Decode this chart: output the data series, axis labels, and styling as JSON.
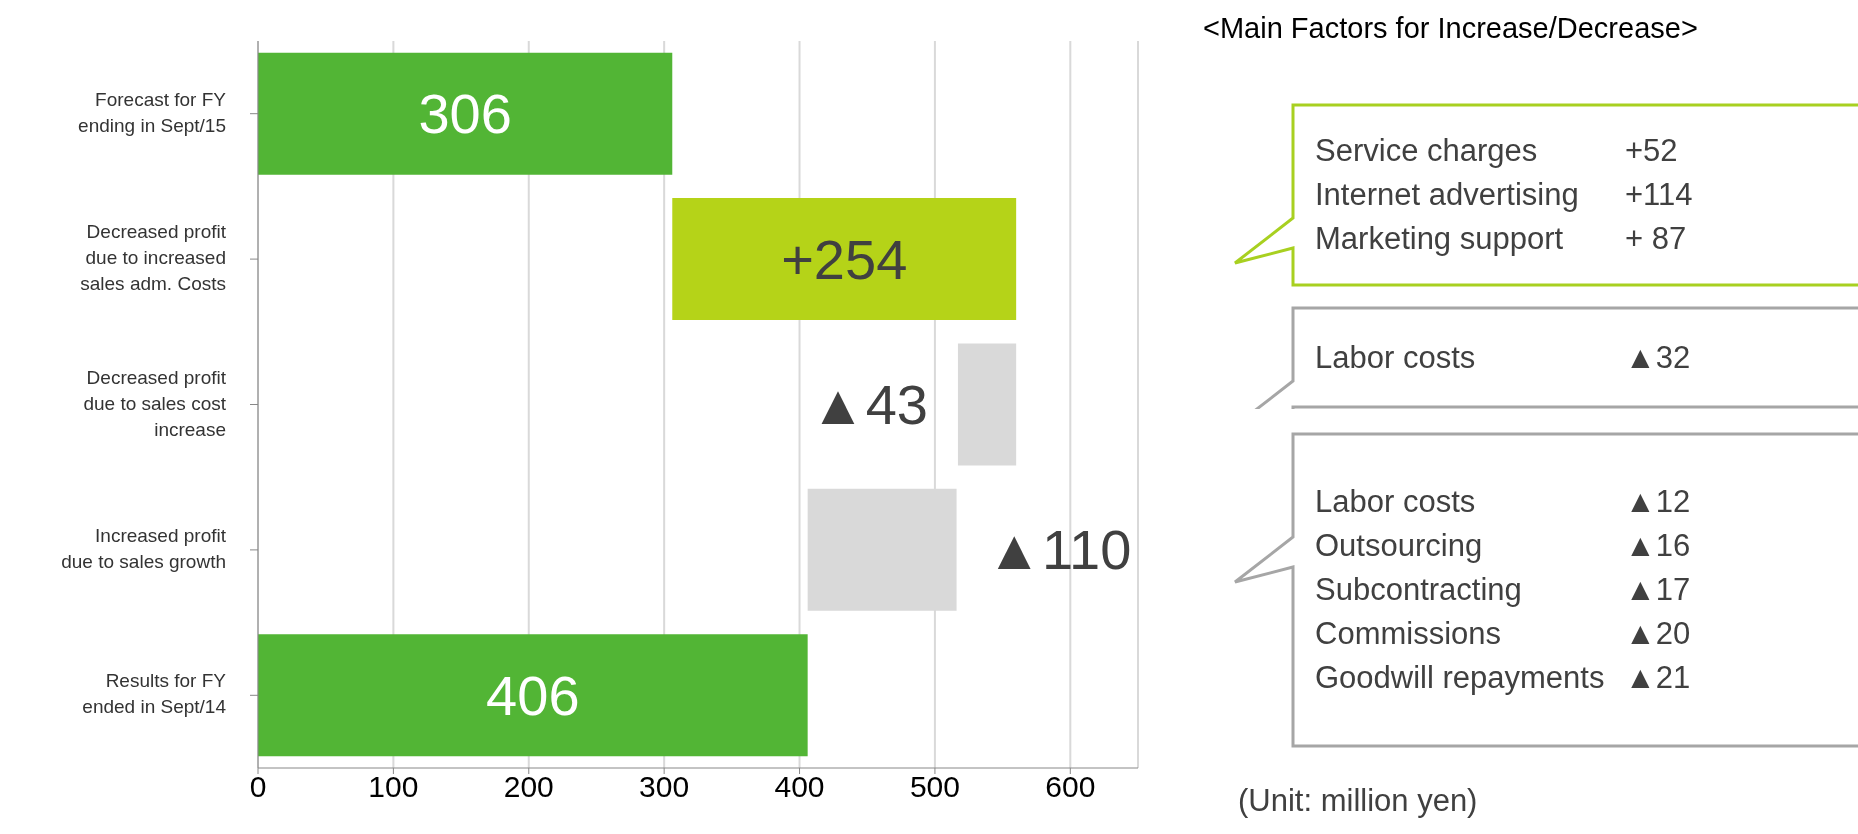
{
  "chart_data": {
    "type": "bar",
    "orientation": "horizontal",
    "categories": [
      "Forecast for FY ending in Sept/15",
      "Decreased profit due to increased sales adm. Costs",
      "Decreased profit due to  sales cost increase",
      "Increased profit due to sales growth",
      "Results for FY ended in Sept/14"
    ],
    "values": [
      306,
      254,
      43,
      110,
      406
    ],
    "base": [
      0,
      306,
      517,
      406,
      0
    ],
    "colors": [
      "#52b535",
      "#b5d318",
      "#d9d9d9",
      "#d9d9d9",
      "#52b535"
    ],
    "value_labels": [
      "306",
      "+254",
      "▲43",
      "▲110",
      "406"
    ],
    "xlim": [
      0,
      650
    ],
    "xticks": [
      0,
      100,
      200,
      300,
      400,
      500,
      600
    ],
    "grid": "x",
    "legend": false,
    "annotations": [
      "<Main Factors for Increase/Decrease>",
      "Service charges\t+52\nInternet advertising\t+114\nMarketing support\t+ 87",
      "Labor costs\t▲32",
      "Labor costs\t▲12\nOutsourcing\t▲16\nSubcontracting\t▲17\nCommissions\t▲20\nGoodwill repayments\t▲21",
      "(Unit: million yen)"
    ]
  }
}
